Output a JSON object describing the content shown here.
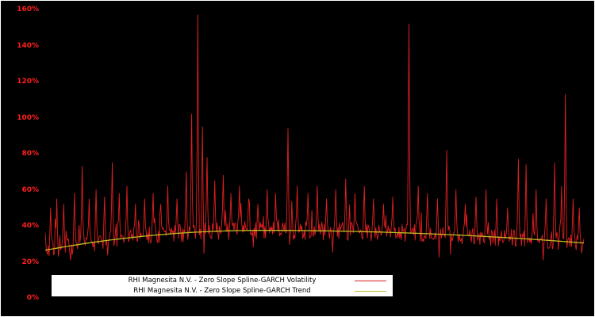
{
  "figure": {
    "background": "#000000",
    "border_color": "#ffffff"
  },
  "chart_data": {
    "type": "line",
    "title": "",
    "xlabel": "",
    "ylabel": "",
    "ylim": [
      0,
      1.6
    ],
    "grid": false,
    "legend_position": "lower-left",
    "ytick_values": [
      0,
      0.2,
      0.4,
      0.6,
      0.8,
      1.0,
      1.2,
      1.4,
      1.6
    ],
    "ytick_labels": [
      "0%",
      "20%",
      "40%",
      "60%",
      "80%",
      "100%",
      "120%",
      "140%",
      "160%"
    ],
    "axis_label_color": "#ff1f1f",
    "series": [
      {
        "name": "RHI Magnesita N.V. - Zero Slope Spline-GARCH Volatility",
        "color": "#e02020",
        "style": "noisy"
      },
      {
        "name": "RHI Magnesita N.V. - Zero Slope Spline-GARCH Trend",
        "color": "#bcbd22",
        "style": "smooth"
      }
    ],
    "trend_profile": {
      "left": 0.265,
      "peak": 0.375,
      "peak_x": 0.4,
      "right": 0.305
    },
    "volatility_profile": {
      "seed": 7,
      "points": 700,
      "noise": 0.05,
      "spikes": [
        [
          0.01,
          0.5
        ],
        [
          0.022,
          0.55
        ],
        [
          0.035,
          0.52
        ],
        [
          0.055,
          0.58
        ],
        [
          0.068,
          0.73
        ],
        [
          0.082,
          0.55
        ],
        [
          0.095,
          0.6
        ],
        [
          0.11,
          0.56
        ],
        [
          0.125,
          0.75
        ],
        [
          0.138,
          0.58
        ],
        [
          0.152,
          0.62
        ],
        [
          0.168,
          0.52
        ],
        [
          0.185,
          0.55
        ],
        [
          0.2,
          0.58
        ],
        [
          0.215,
          0.52
        ],
        [
          0.228,
          0.62
        ],
        [
          0.245,
          0.55
        ],
        [
          0.262,
          0.7
        ],
        [
          0.272,
          1.02
        ],
        [
          0.283,
          1.57
        ],
        [
          0.292,
          0.95
        ],
        [
          0.3,
          0.78
        ],
        [
          0.315,
          0.65
        ],
        [
          0.33,
          0.68
        ],
        [
          0.345,
          0.58
        ],
        [
          0.36,
          0.62
        ],
        [
          0.378,
          0.55
        ],
        [
          0.395,
          0.52
        ],
        [
          0.412,
          0.6
        ],
        [
          0.428,
          0.58
        ],
        [
          0.45,
          0.94
        ],
        [
          0.468,
          0.62
        ],
        [
          0.488,
          0.58
        ],
        [
          0.505,
          0.62
        ],
        [
          0.522,
          0.55
        ],
        [
          0.54,
          0.6
        ],
        [
          0.558,
          0.66
        ],
        [
          0.575,
          0.58
        ],
        [
          0.592,
          0.62
        ],
        [
          0.61,
          0.55
        ],
        [
          0.628,
          0.52
        ],
        [
          0.645,
          0.56
        ],
        [
          0.675,
          1.52
        ],
        [
          0.692,
          0.62
        ],
        [
          0.71,
          0.58
        ],
        [
          0.728,
          0.55
        ],
        [
          0.745,
          0.82
        ],
        [
          0.762,
          0.6
        ],
        [
          0.78,
          0.52
        ],
        [
          0.8,
          0.56
        ],
        [
          0.818,
          0.6
        ],
        [
          0.838,
          0.55
        ],
        [
          0.858,
          0.5
        ],
        [
          0.878,
          0.77
        ],
        [
          0.893,
          0.74
        ],
        [
          0.912,
          0.6
        ],
        [
          0.93,
          0.55
        ],
        [
          0.945,
          0.75
        ],
        [
          0.958,
          0.62
        ],
        [
          0.966,
          1.13
        ],
        [
          0.98,
          0.55
        ],
        [
          0.992,
          0.5
        ]
      ]
    }
  }
}
